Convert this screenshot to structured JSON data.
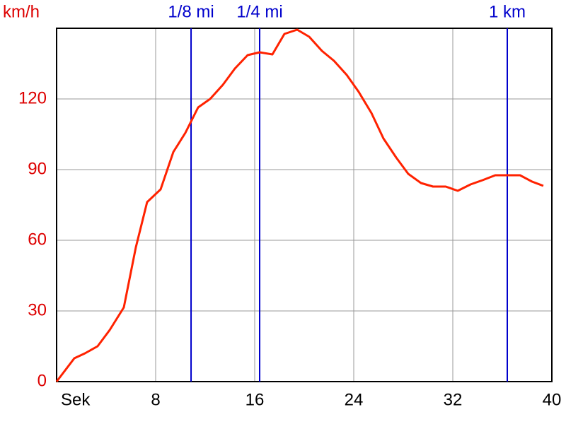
{
  "chart_data": {
    "type": "line",
    "x": [
      0,
      1.43,
      2.29,
      3.31,
      4.29,
      5.43,
      6.4,
      7.31,
      8.4,
      9.43,
      10.4,
      11.43,
      12.4,
      13.43,
      14.4,
      15.43,
      16.4,
      17.43,
      18.4,
      19.43,
      20.4,
      21.43,
      22.4,
      23.43,
      24.4,
      25.43,
      26.4,
      27.43,
      28.4,
      29.43,
      30.4,
      31.43,
      32.4,
      33.43,
      34.4,
      35.43,
      36.4,
      37.43,
      38.4,
      39.31
    ],
    "series": [
      {
        "color": "#ff2200",
        "values": [
          0,
          9.9,
          12,
          15,
          21.9,
          31.5,
          57,
          76.2,
          81.6,
          97.5,
          105.6,
          116.4,
          120,
          126,
          132.9,
          138.6,
          139.8,
          138.9,
          147.6,
          149.4,
          146.4,
          140.4,
          136.2,
          130.2,
          123,
          114,
          103.2,
          95.1,
          88.2,
          84.3,
          82.8,
          82.8,
          81,
          83.7,
          85.5,
          87.6,
          87.6,
          87.6,
          84.9,
          83.1
        ]
      }
    ],
    "xlim": [
      0,
      40
    ],
    "xticks": [
      {
        "value": 0,
        "label": "Sek"
      },
      8,
      16,
      24,
      32,
      40
    ],
    "ylim": [
      0,
      150
    ],
    "yticks": [
      0,
      30,
      60,
      90,
      120,
      {
        "value": 150,
        "label": "km/h"
      }
    ],
    "grid": true,
    "markers": [
      {
        "label": "1/8 mi",
        "x": 10.86,
        "color": "#0000cc"
      },
      {
        "label": "1/4 mi",
        "x": 16.4,
        "color": "#0000cc"
      },
      {
        "label": "1 km",
        "x": 36.4,
        "color": "#0000cc"
      }
    ]
  }
}
